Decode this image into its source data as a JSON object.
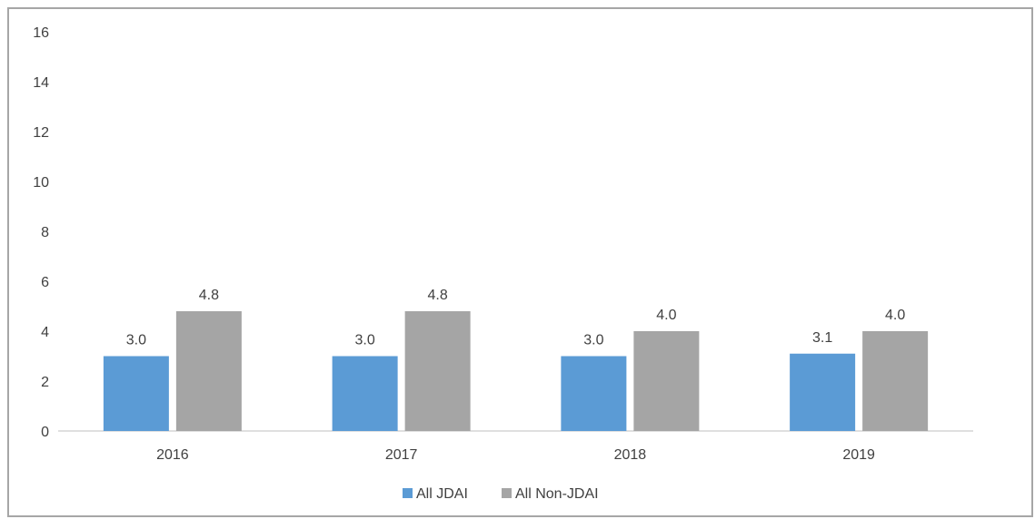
{
  "chart_data": {
    "type": "bar",
    "categories": [
      "2016",
      "2017",
      "2018",
      "2019"
    ],
    "series": [
      {
        "name": "All JDAI",
        "values": [
          3.0,
          3.0,
          3.0,
          3.1
        ],
        "color": "#5b9bd5"
      },
      {
        "name": "All Non-JDAI",
        "values": [
          4.8,
          4.8,
          4.0,
          4.0
        ],
        "color": "#a5a5a5"
      }
    ],
    "data_labels": [
      [
        "3.0",
        "3.0",
        "3.0",
        "3.1"
      ],
      [
        "4.8",
        "4.8",
        "4.0",
        "4.0"
      ]
    ],
    "ylim": [
      0,
      16
    ],
    "yticks": [
      "0",
      "2",
      "4",
      "6",
      "8",
      "10",
      "12",
      "14",
      "16"
    ],
    "grid": false,
    "legend_position": "bottom",
    "axis_color": "#bfbfbf",
    "text_color": "#404040"
  }
}
